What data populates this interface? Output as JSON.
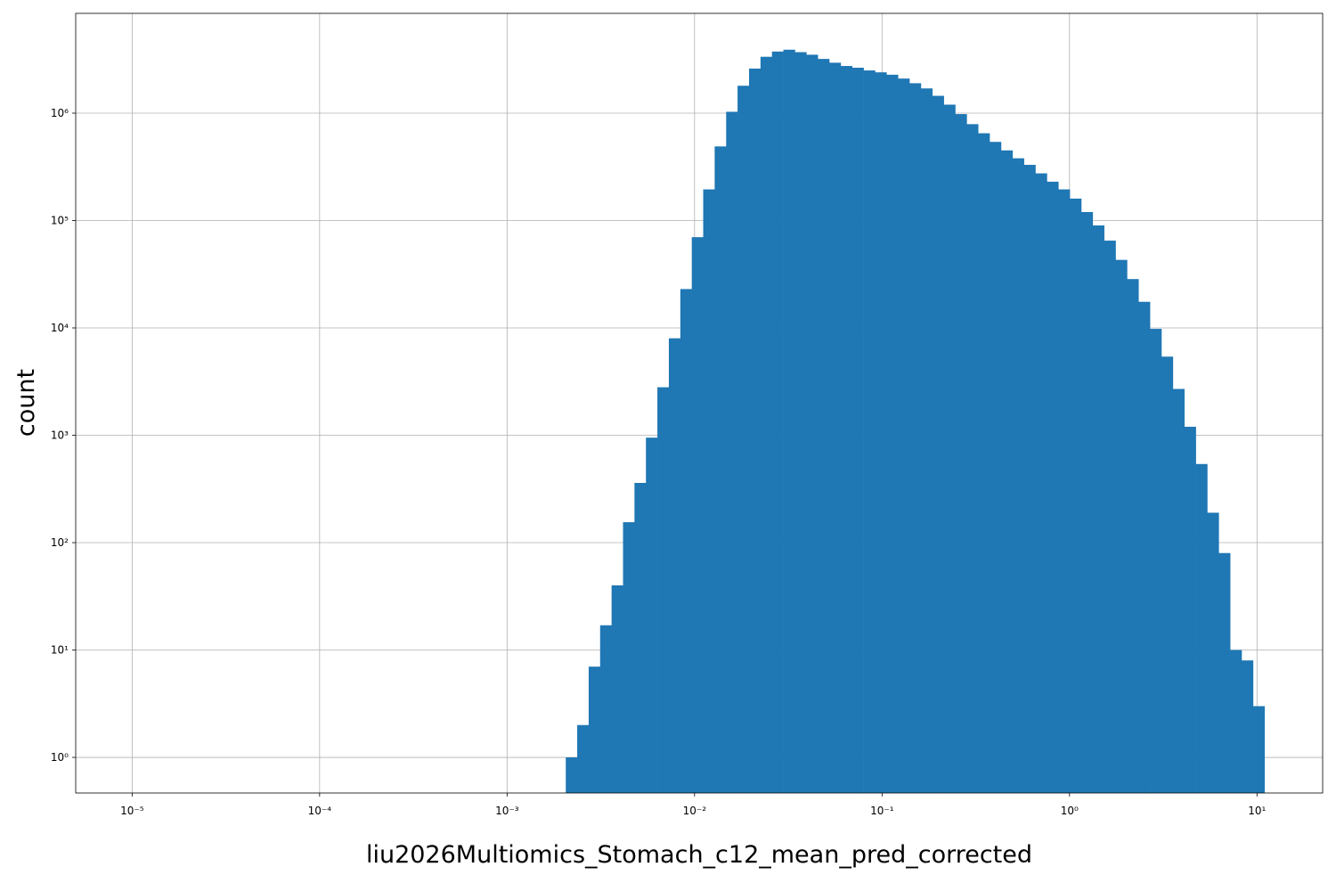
{
  "chart_data": {
    "type": "histogram",
    "xlabel": "liu2026Multiomics_Stomach_c12_mean_pred_corrected",
    "ylabel": "count",
    "color": "#1f77b4",
    "xscale": "log",
    "yscale": "log",
    "grid": true,
    "bins": [
      0.002056,
      0.002366,
      0.002724,
      0.003135,
      0.003609,
      0.004154,
      0.004781,
      0.005503,
      0.006335,
      0.007292,
      0.008395,
      0.009663,
      0.01112,
      0.0128,
      0.01474,
      0.01696,
      0.01953,
      0.02248,
      0.02587,
      0.02978,
      0.03428,
      0.03946,
      0.04542,
      0.05228,
      0.06017,
      0.06926,
      0.07972,
      0.09177,
      0.1056,
      0.1216,
      0.14,
      0.1611,
      0.1854,
      0.2135,
      0.2457,
      0.2828,
      0.3255,
      0.3747,
      0.4313,
      0.4965,
      0.5715,
      0.6578,
      0.7572,
      0.8716,
      1.003,
      1.155,
      1.329,
      1.53,
      1.761,
      2.027,
      2.333,
      2.686,
      3.092,
      3.559,
      4.097,
      4.716,
      5.428,
      6.248,
      7.192,
      8.279,
      9.528,
      10.97
    ],
    "values": [
      1,
      2,
      7,
      17,
      40,
      155,
      360,
      950,
      2800,
      8000,
      23000,
      70000,
      195000,
      490000,
      1030000,
      1800000,
      2600000,
      3350000,
      3750000,
      3900000,
      3700000,
      3500000,
      3200000,
      2950000,
      2750000,
      2650000,
      2500000,
      2400000,
      2280000,
      2100000,
      1900000,
      1700000,
      1450000,
      1200000,
      980000,
      790000,
      650000,
      540000,
      450000,
      380000,
      330000,
      275000,
      230000,
      195000,
      160000,
      120000,
      90000,
      65000,
      43000,
      28500,
      17500,
      9800,
      5400,
      2700,
      1200,
      540,
      190,
      80,
      10,
      8,
      3
    ],
    "xlim": [
      5e-06,
      22.4
    ],
    "ylim": [
      0.466,
      8500000
    ],
    "xticks": [
      {
        "value": 1e-05,
        "label": "10⁻⁵"
      },
      {
        "value": 0.0001,
        "label": "10⁻⁴"
      },
      {
        "value": 0.001,
        "label": "10⁻³"
      },
      {
        "value": 0.01,
        "label": "10⁻²"
      },
      {
        "value": 0.1,
        "label": "10⁻¹"
      },
      {
        "value": 1,
        "label": "10⁰"
      },
      {
        "value": 10,
        "label": "10¹"
      }
    ],
    "yticks": [
      {
        "value": 1,
        "label": "10⁰"
      },
      {
        "value": 10,
        "label": "10¹"
      },
      {
        "value": 100,
        "label": "10²"
      },
      {
        "value": 1000,
        "label": "10³"
      },
      {
        "value": 10000,
        "label": "10⁴"
      },
      {
        "value": 100000,
        "label": "10⁵"
      },
      {
        "value": 1000000,
        "label": "10⁶"
      }
    ]
  }
}
